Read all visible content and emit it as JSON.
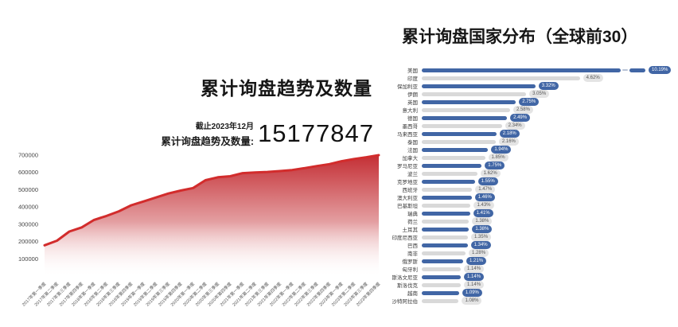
{
  "left_panel": {
    "title": "累计询盘趋势及数量",
    "asof": "截止2023年12月",
    "stat_label": "累计询盘趋势及数量:",
    "stat_value": "15177847"
  },
  "right_panel": {
    "title": "累计询盘国家分布（全球前30）"
  },
  "colors": {
    "area_line": "#d22c2c",
    "area_fill_top": "#c2282e",
    "area_fill_bottom": "#ffffff",
    "bar_blue": "#4166a5",
    "bar_gray": "#d9d9d9",
    "badge_blue_bg": "#4166a5",
    "badge_blue_text": "#ffffff",
    "badge_gray_bg": "#e4e4e4",
    "badge_gray_text": "#555555",
    "axis_text": "#555555",
    "break_dash": "#b9c3d6"
  },
  "chart_data": [
    {
      "type": "area",
      "title": "累计询盘趋势及数量",
      "x": [
        "2017年第一季度",
        "2017年第二季度",
        "2017年第三季度",
        "2017年第四季度",
        "2018年第一季度",
        "2018年第二季度",
        "2018年第三季度",
        "2018年第四季度",
        "2019年第一季度",
        "2019年第二季度",
        "2019年第三季度",
        "2019年第四季度",
        "2020年第一季度",
        "2020年第二季度",
        "2020年第三季度",
        "2020年第四季度",
        "2021年第一季度",
        "2021年第二季度",
        "2021年第三季度",
        "2021年第四季度",
        "2022年第一季度",
        "2022年第二季度",
        "2022年第三季度",
        "2022年第四季度",
        "2023年第一季度",
        "2023年第二季度",
        "2023年第三季度",
        "2023年第四季度"
      ],
      "values": [
        178000,
        205000,
        258000,
        282000,
        325000,
        348000,
        375000,
        410000,
        432000,
        455000,
        478000,
        495000,
        510000,
        555000,
        572000,
        578000,
        596000,
        600000,
        603000,
        608000,
        614000,
        625000,
        637000,
        648000,
        665000,
        678000,
        688000,
        700000
      ],
      "ylim": [
        0,
        700000
      ],
      "yticks": [
        100000,
        200000,
        300000,
        400000,
        500000,
        600000,
        700000
      ],
      "ytick_labels": [
        "100000",
        "200000",
        "300000",
        "400000",
        "500000",
        "600000",
        "700000"
      ],
      "grid": false,
      "legend": false,
      "xlabel": "",
      "ylabel": ""
    },
    {
      "type": "bar",
      "orientation": "horizontal",
      "title": "累计询盘国家分布（全球前30）",
      "categories": [
        "美国",
        "印度",
        "保加利亚",
        "伊朗",
        "英国",
        "意大利",
        "德国",
        "墨西哥",
        "马来西亚",
        "泰国",
        "法国",
        "加拿大",
        "罗马尼亚",
        "波兰",
        "克罗地亚",
        "西班牙",
        "澳大利亚",
        "巴基斯坦",
        "瑞典",
        "荷兰",
        "土耳其",
        "印度尼西亚",
        "巴西",
        "南非",
        "俄罗斯",
        "匈牙利",
        "斯洛文尼亚",
        "斯洛伐克",
        "越南",
        "沙特阿拉伯"
      ],
      "values": [
        10.19,
        4.62,
        3.32,
        3.05,
        2.75,
        2.58,
        2.49,
        2.34,
        2.18,
        2.16,
        1.94,
        1.85,
        1.75,
        1.62,
        1.55,
        1.47,
        1.46,
        1.43,
        1.41,
        1.38,
        1.38,
        1.35,
        1.34,
        1.28,
        1.21,
        1.14,
        1.14,
        1.14,
        1.09,
        1.08
      ],
      "labels": [
        "10.19%",
        "4.62%",
        "3.32%",
        "3.05%",
        "2.75%",
        "2.58%",
        "2.49%",
        "2.34%",
        "2.18%",
        "2.16%",
        "1.94%",
        "1.85%",
        "1.75%",
        "1.62%",
        "1.55%",
        "1.47%",
        "1.46%",
        "1.43%",
        "1.41%",
        "1.38%",
        "1.38%",
        "1.35%",
        "1.34%",
        "1.28%",
        "1.21%",
        "1.14%",
        "1.14%",
        "1.14%",
        "1.09%",
        "1.08%"
      ],
      "unit": "%",
      "broken_bar_category": "美国",
      "alternating_colors": [
        "#4166a5",
        "#d9d9d9"
      ],
      "legend": false
    }
  ]
}
